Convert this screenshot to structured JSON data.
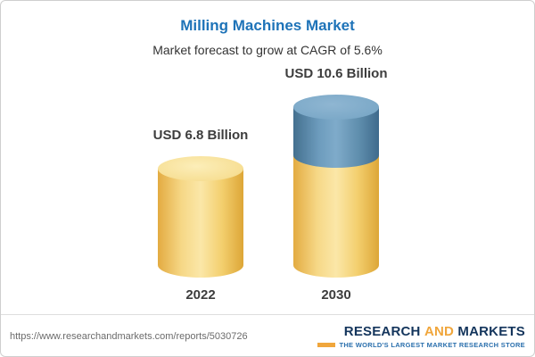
{
  "chart_data": {
    "type": "bar",
    "title": "Milling Machines Market",
    "subtitle": "Market forecast to grow at CAGR of 5.6%",
    "categories": [
      "2022",
      "2030"
    ],
    "values": [
      6.8,
      10.6
    ],
    "value_labels": [
      "USD 6.8 Billion",
      "USD 10.6 Billion"
    ],
    "unit": "USD Billion",
    "cagr": "5.6%",
    "ylim": [
      0,
      12
    ],
    "legend": "none",
    "grid": false,
    "colors": {
      "title": "#1e73b8",
      "base_segment": "#f3cf6e",
      "growth_segment": "#5d8cab",
      "label_text": "#3d3d3d"
    }
  },
  "footer": {
    "url": "https://www.researchandmarkets.com/reports/5030726",
    "logo": {
      "part1": "RESEARCH",
      "part2": "AND",
      "part3": "MARKETS",
      "tagline": "THE WORLD'S LARGEST MARKET RESEARCH STORE",
      "navy": "#14355c",
      "gold": "#f0a63c"
    }
  }
}
